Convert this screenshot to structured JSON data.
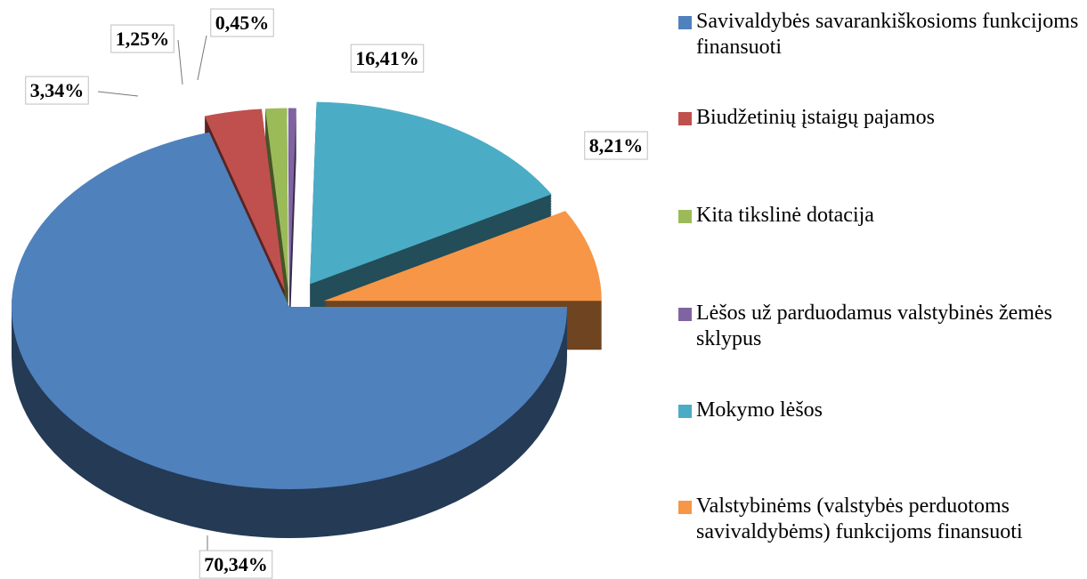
{
  "chart_data": {
    "type": "pie",
    "categories": [
      "Savivaldybės savarankiškosioms funkcijoms finansuoti",
      "Biudžetinių įstaigų pajamos",
      "Kita tikslinė dotacija",
      "Lėšos už parduodamus valstybinės žemės sklypus",
      "Mokymo lėšos",
      "Valstybinėms (valstybės perduotoms savivaldybėms) funkcijoms finansuoti"
    ],
    "values": [
      70.34,
      3.34,
      1.25,
      0.45,
      16.41,
      8.21
    ],
    "value_labels": [
      "70,34%",
      "3,34%",
      "1,25%",
      "0,45%",
      "16,41%",
      "8,21%"
    ],
    "colors": [
      "#4f81bd",
      "#c0504d",
      "#9bbb59",
      "#8064a2",
      "#4bacc6",
      "#f79646"
    ],
    "legend": "right"
  }
}
